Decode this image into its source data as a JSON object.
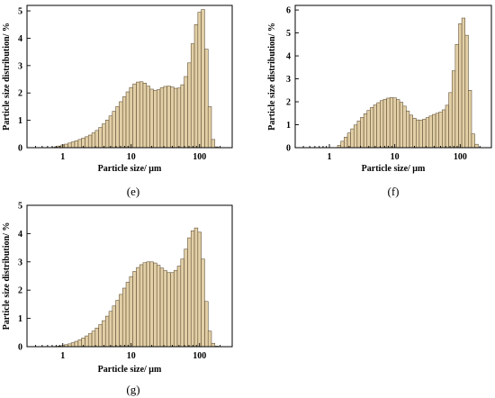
{
  "chart_data": [
    {
      "panel": "(e)",
      "type": "bar",
      "xlabel": "Particle size/ μm",
      "ylabel": "Particle size distribution/ %",
      "xscale": "log",
      "xlim": [
        0.3,
        300
      ],
      "ylim": [
        0,
        5.2
      ],
      "yticks": [
        "0",
        "1",
        "2",
        "3",
        "4",
        "5"
      ],
      "xticks": [
        "1",
        "10",
        "100"
      ],
      "x": [
        0.71,
        0.8,
        0.89,
        1.0,
        1.12,
        1.26,
        1.41,
        1.58,
        1.78,
        2.0,
        2.24,
        2.51,
        2.82,
        3.16,
        3.55,
        3.98,
        4.47,
        5.01,
        5.62,
        6.31,
        7.08,
        7.94,
        8.91,
        10.0,
        11.2,
        12.6,
        14.1,
        15.8,
        17.8,
        20.0,
        22.4,
        25.1,
        28.2,
        31.6,
        35.5,
        39.8,
        44.7,
        50.1,
        56.2,
        63.1,
        70.8,
        79.4,
        89.1,
        100,
        112,
        126,
        141,
        158,
        178
      ],
      "values": [
        0.01,
        0.03,
        0.06,
        0.1,
        0.13,
        0.17,
        0.21,
        0.25,
        0.3,
        0.35,
        0.4,
        0.46,
        0.54,
        0.63,
        0.74,
        0.87,
        1.01,
        1.16,
        1.33,
        1.5,
        1.68,
        1.86,
        2.04,
        2.2,
        2.33,
        2.4,
        2.41,
        2.36,
        2.25,
        2.14,
        2.09,
        2.12,
        2.19,
        2.24,
        2.25,
        2.22,
        2.17,
        2.18,
        2.3,
        2.6,
        3.1,
        3.8,
        4.5,
        4.95,
        5.05,
        3.6,
        1.5,
        0.3,
        0.03
      ]
    },
    {
      "panel": "(f)",
      "type": "bar",
      "xlabel": "Particle size/ μm",
      "ylabel": "Particle size distribution/ %",
      "xscale": "log",
      "xlim": [
        0.3,
        300
      ],
      "ylim": [
        0,
        6.2
      ],
      "yticks": [
        "0",
        "1",
        "2",
        "3",
        "4",
        "5",
        "6"
      ],
      "xticks": [
        "1",
        "10",
        "100"
      ],
      "x": [
        1.41,
        1.58,
        1.78,
        2.0,
        2.24,
        2.51,
        2.82,
        3.16,
        3.55,
        3.98,
        4.47,
        5.01,
        5.62,
        6.31,
        7.08,
        7.94,
        8.91,
        10.0,
        11.2,
        12.6,
        14.1,
        15.8,
        17.8,
        20.0,
        22.4,
        25.1,
        28.2,
        31.6,
        35.5,
        39.8,
        44.7,
        50.1,
        56.2,
        63.1,
        70.8,
        79.4,
        89.1,
        100,
        112,
        126,
        141,
        158,
        178
      ],
      "values": [
        0.1,
        0.28,
        0.46,
        0.64,
        0.82,
        0.99,
        1.16,
        1.32,
        1.48,
        1.62,
        1.75,
        1.86,
        1.96,
        2.05,
        2.11,
        2.16,
        2.18,
        2.17,
        2.1,
        1.98,
        1.81,
        1.6,
        1.42,
        1.28,
        1.21,
        1.2,
        1.24,
        1.31,
        1.38,
        1.45,
        1.5,
        1.55,
        1.65,
        1.85,
        2.4,
        3.35,
        4.5,
        5.4,
        5.65,
        4.9,
        2.5,
        0.6,
        0.15
      ]
    },
    {
      "panel": "(g)",
      "type": "bar",
      "xlabel": "Particle size/ μm",
      "ylabel": "Particle size distribution/ %",
      "xscale": "log",
      "xlim": [
        0.3,
        300
      ],
      "ylim": [
        0,
        5.0
      ],
      "yticks": [
        "0",
        "1",
        "2",
        "3",
        "4",
        "5"
      ],
      "xticks": [
        "1",
        "10",
        "100"
      ],
      "x": [
        0.8,
        0.89,
        1.0,
        1.12,
        1.26,
        1.41,
        1.58,
        1.78,
        2.0,
        2.24,
        2.51,
        2.82,
        3.16,
        3.55,
        3.98,
        4.47,
        5.01,
        5.62,
        6.31,
        7.08,
        7.94,
        8.91,
        10.0,
        11.2,
        12.6,
        14.1,
        15.8,
        17.8,
        20.0,
        22.4,
        25.1,
        28.2,
        31.6,
        35.5,
        39.8,
        44.7,
        50.1,
        56.2,
        63.1,
        70.8,
        79.4,
        89.1,
        100,
        112,
        126,
        141,
        158,
        178
      ],
      "values": [
        0.01,
        0.02,
        0.04,
        0.07,
        0.1,
        0.14,
        0.19,
        0.24,
        0.31,
        0.38,
        0.46,
        0.55,
        0.66,
        0.78,
        0.92,
        1.08,
        1.25,
        1.44,
        1.64,
        1.85,
        2.07,
        2.28,
        2.48,
        2.66,
        2.8,
        2.9,
        2.97,
        3.0,
        3.0,
        2.96,
        2.88,
        2.78,
        2.69,
        2.62,
        2.62,
        2.7,
        2.85,
        3.1,
        3.45,
        3.85,
        4.1,
        4.2,
        4.05,
        3.1,
        1.6,
        0.55,
        0.12,
        0.02
      ]
    }
  ]
}
